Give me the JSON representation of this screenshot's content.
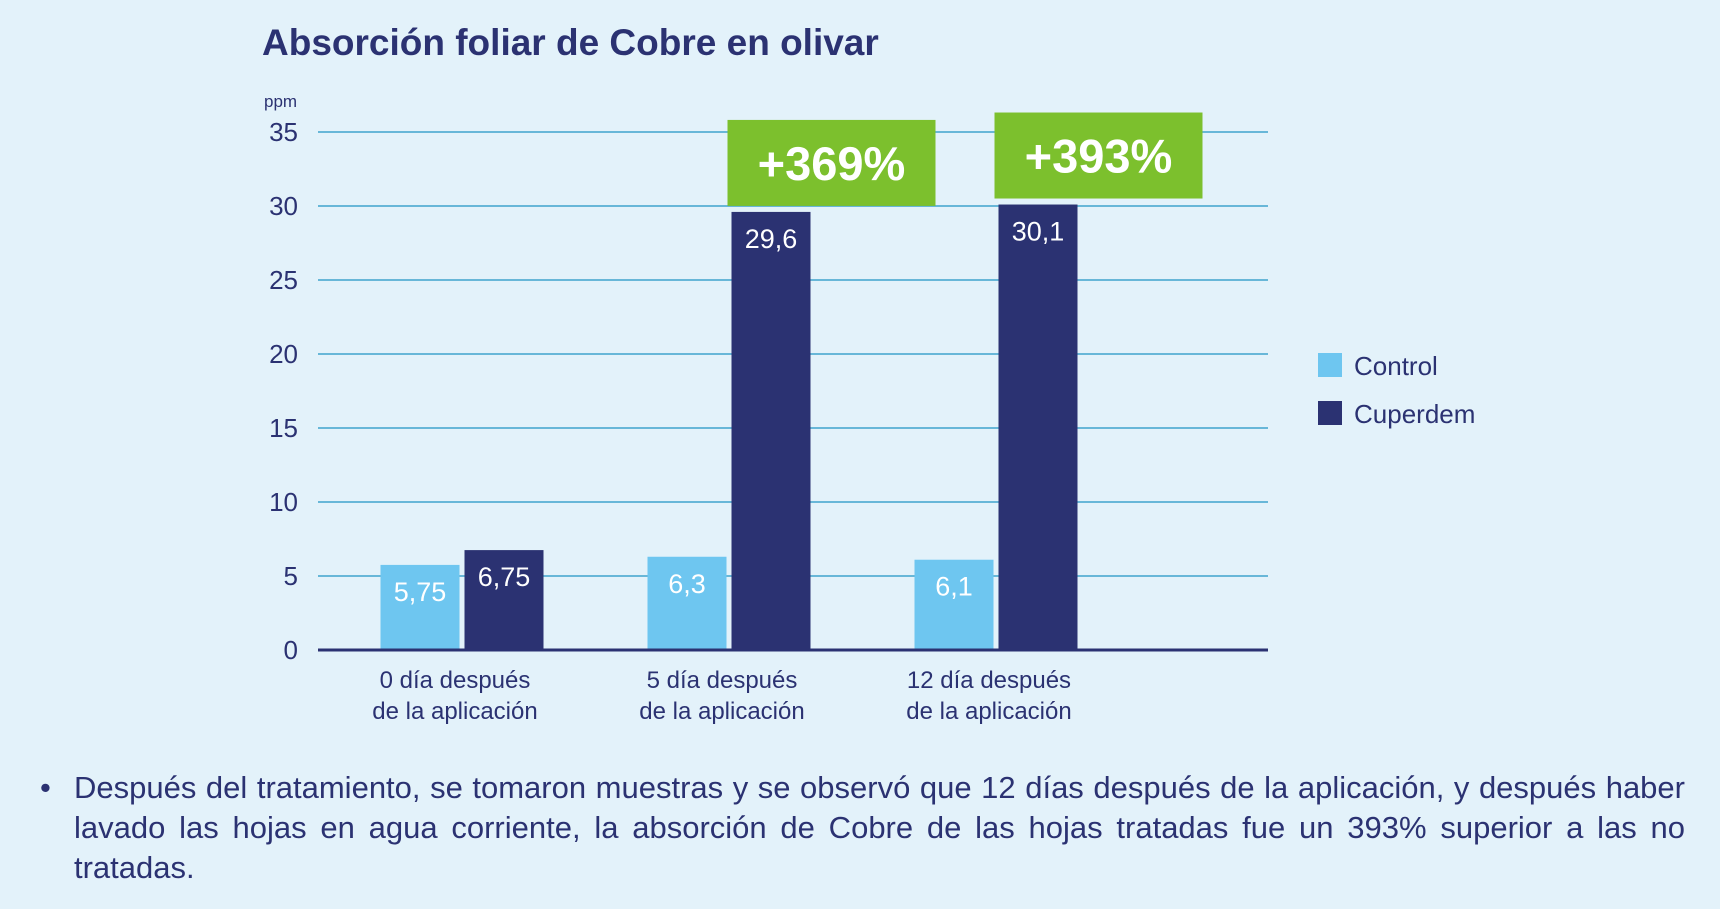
{
  "chart_data": {
    "type": "bar",
    "title": "Absorción foliar de Cobre en olivar",
    "ylabel": "ppm",
    "ylim": [
      0,
      35
    ],
    "yticks": [
      0,
      5,
      10,
      15,
      20,
      25,
      30,
      35
    ],
    "categories": [
      [
        "0 día después",
        "de la aplicación"
      ],
      [
        "5 día después",
        "de la aplicación"
      ],
      [
        "12 día después",
        "de la aplicación"
      ]
    ],
    "series": [
      {
        "name": "Control",
        "color": "#6ec6f0",
        "values": [
          5.75,
          6.3,
          6.1
        ],
        "labels": [
          "5,75",
          "6,3",
          "6,1"
        ]
      },
      {
        "name": "Cuperdem",
        "color": "#2b3272",
        "values": [
          6.75,
          29.6,
          30.1
        ],
        "labels": [
          "6,75",
          "29,6",
          "30,1"
        ]
      }
    ],
    "annotations": [
      {
        "category_index": 1,
        "text": "+369%",
        "color": "#7cc02d"
      },
      {
        "category_index": 2,
        "text": "+393%",
        "color": "#7cc02d"
      }
    ],
    "grid": true,
    "grid_color": "#3fa3cc",
    "legend_placement": "right"
  },
  "note": {
    "bullet": "•",
    "text": "Después del tratamiento, se tomaron muestras y se observó que 12 días después de la aplicación, y después haber lavado las hojas en agua corriente, la absorción de Cobre de las hojas tratadas fue un 393% superior a las no tratadas."
  }
}
